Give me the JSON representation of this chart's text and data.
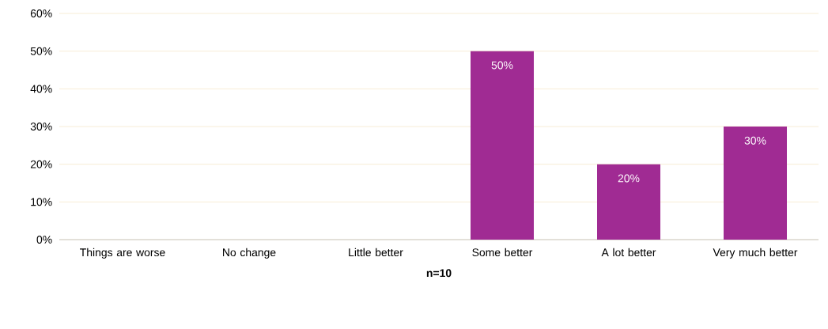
{
  "chart_data": {
    "type": "bar",
    "xlabel": "n=10",
    "categories": [
      "Things are worse",
      "No change",
      "Little better",
      "Some better",
      "A lot better",
      "Very much better"
    ],
    "values": [
      0,
      0,
      0,
      50,
      20,
      30
    ],
    "color": "#a02b93",
    "value_labels": [
      null,
      null,
      null,
      "50%",
      "20%",
      "30%"
    ],
    "ylim": [
      0,
      60
    ],
    "yticks": [
      {
        "value": 0,
        "label": "0%"
      },
      {
        "value": 10,
        "label": "10%"
      },
      {
        "value": 20,
        "label": "20%"
      },
      {
        "value": 30,
        "label": "30%"
      },
      {
        "value": 40,
        "label": "40%"
      },
      {
        "value": 50,
        "label": "50%"
      },
      {
        "value": 60,
        "label": "60%"
      }
    ],
    "grid": "y"
  }
}
